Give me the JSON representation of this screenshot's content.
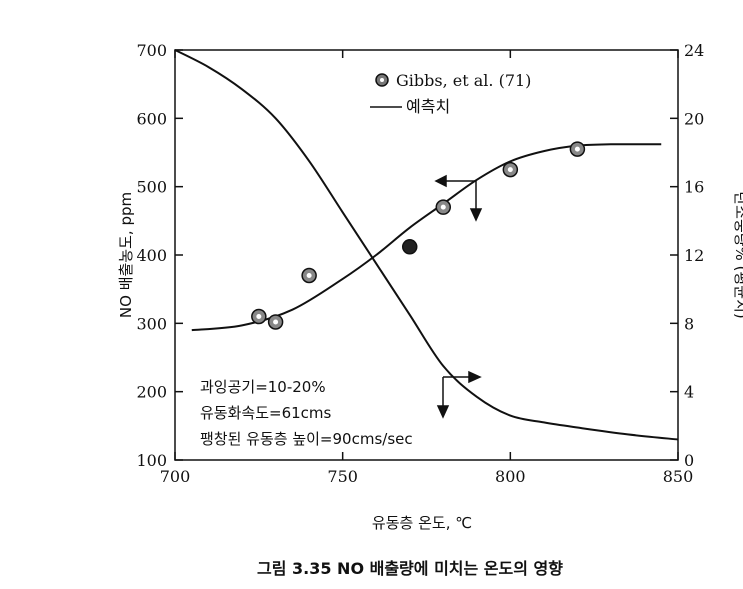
{
  "chart_data": {
    "type": "line",
    "xlabel": "유동층 온도, ℃",
    "ylabel": "NO 배출농도, ppm",
    "y2label": "탄소중량% (평균치)",
    "xlim": [
      700,
      850
    ],
    "ylim": [
      100,
      700
    ],
    "y2lim": [
      0,
      24
    ],
    "x_ticks": [
      "700",
      "750",
      "800",
      "850"
    ],
    "y_ticks": [
      "100",
      "200",
      "300",
      "400",
      "500",
      "600",
      "700"
    ],
    "y2_ticks": [
      "0",
      "4",
      "8",
      "12",
      "16",
      "20",
      "24"
    ],
    "y2_tick_values": [
      0,
      4,
      8,
      12,
      16,
      20,
      24
    ],
    "grid": false,
    "legend": [
      {
        "label": "Gibbs, et al. (71)",
        "marker": "circle"
      },
      {
        "label": "예측치",
        "marker": "line"
      }
    ],
    "series": [
      {
        "name": "Gibbs, et al. (71)",
        "axis": "left",
        "kind": "scatter",
        "points": [
          [
            725,
            310
          ],
          [
            730,
            302
          ],
          [
            740,
            370
          ],
          [
            770,
            412
          ],
          [
            780,
            470
          ],
          [
            800,
            525
          ],
          [
            820,
            555
          ]
        ]
      },
      {
        "name": "예측치",
        "axis": "left",
        "kind": "line",
        "points": [
          [
            705,
            290
          ],
          [
            720,
            297
          ],
          [
            735,
            320
          ],
          [
            750,
            365
          ],
          [
            760,
            400
          ],
          [
            770,
            440
          ],
          [
            780,
            475
          ],
          [
            790,
            510
          ],
          [
            800,
            537
          ],
          [
            810,
            552
          ],
          [
            820,
            560
          ],
          [
            830,
            562
          ],
          [
            845,
            562
          ]
        ]
      },
      {
        "name": "예측치",
        "axis": "right",
        "kind": "line",
        "points": [
          [
            700,
            24
          ],
          [
            710,
            23
          ],
          [
            720,
            21.7
          ],
          [
            730,
            20
          ],
          [
            740,
            17.5
          ],
          [
            750,
            14.5
          ],
          [
            760,
            11.5
          ],
          [
            770,
            8.5
          ],
          [
            780,
            5.5
          ],
          [
            790,
            3.7
          ],
          [
            800,
            2.6
          ],
          [
            810,
            2.2
          ],
          [
            820,
            1.9
          ],
          [
            835,
            1.5
          ],
          [
            850,
            1.2
          ]
        ]
      }
    ],
    "annotations": [
      "과잉공기=10-20%",
      "유동화속도=61cms",
      "팽창된 유동층 높이=90cms/sec"
    ]
  },
  "caption": "그림 3.35  NO 배출량에 미치는 온도의 영향"
}
